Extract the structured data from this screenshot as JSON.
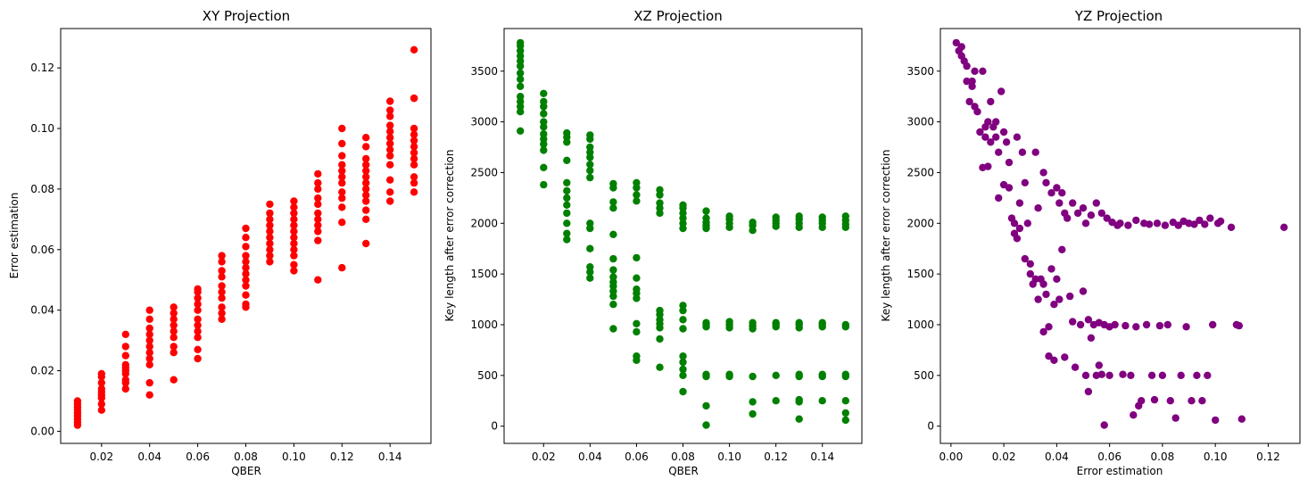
{
  "chart_data": [
    {
      "type": "scatter",
      "title": "XY Projection",
      "xlabel": "QBER",
      "ylabel": "Error estimation",
      "xlim": [
        0.003,
        0.157
      ],
      "ylim": [
        -0.004,
        0.133
      ],
      "xticks": [
        0.02,
        0.04,
        0.06,
        0.08,
        0.1,
        0.12,
        0.14
      ],
      "xtick_labels": [
        "0.02",
        "0.04",
        "0.06",
        "0.08",
        "0.10",
        "0.12",
        "0.14"
      ],
      "yticks": [
        0.0,
        0.02,
        0.04,
        0.06,
        0.08,
        0.1,
        0.12
      ],
      "ytick_labels": [
        "0.00",
        "0.02",
        "0.04",
        "0.06",
        "0.08",
        "0.10",
        "0.12"
      ],
      "grid": false,
      "color": "#ff0000",
      "series": [
        {
          "x": 0.01,
          "y": [
            0.002,
            0.003,
            0.004,
            0.005,
            0.006,
            0.007,
            0.008,
            0.009,
            0.01
          ]
        },
        {
          "x": 0.02,
          "y": [
            0.007,
            0.009,
            0.011,
            0.012,
            0.013,
            0.014,
            0.016,
            0.018,
            0.019
          ]
        },
        {
          "x": 0.03,
          "y": [
            0.014,
            0.016,
            0.017,
            0.019,
            0.02,
            0.021,
            0.022,
            0.025,
            0.028,
            0.032
          ]
        },
        {
          "x": 0.04,
          "y": [
            0.012,
            0.016,
            0.022,
            0.024,
            0.026,
            0.028,
            0.03,
            0.032,
            0.034,
            0.037,
            0.04
          ]
        },
        {
          "x": 0.05,
          "y": [
            0.017,
            0.026,
            0.028,
            0.031,
            0.033,
            0.035,
            0.037,
            0.039,
            0.041
          ]
        },
        {
          "x": 0.06,
          "y": [
            0.024,
            0.027,
            0.031,
            0.033,
            0.035,
            0.037,
            0.04,
            0.042,
            0.044,
            0.046,
            0.047
          ]
        },
        {
          "x": 0.07,
          "y": [
            0.037,
            0.039,
            0.041,
            0.044,
            0.046,
            0.048,
            0.051,
            0.053,
            0.056,
            0.058
          ]
        },
        {
          "x": 0.08,
          "y": [
            0.041,
            0.042,
            0.045,
            0.048,
            0.05,
            0.052,
            0.054,
            0.056,
            0.058,
            0.061,
            0.064,
            0.067
          ]
        },
        {
          "x": 0.09,
          "y": [
            0.056,
            0.058,
            0.06,
            0.062,
            0.064,
            0.066,
            0.068,
            0.07,
            0.072,
            0.075
          ]
        },
        {
          "x": 0.1,
          "y": [
            0.053,
            0.055,
            0.058,
            0.06,
            0.062,
            0.064,
            0.066,
            0.068,
            0.07,
            0.072,
            0.074,
            0.076
          ]
        },
        {
          "x": 0.11,
          "y": [
            0.05,
            0.063,
            0.066,
            0.068,
            0.07,
            0.072,
            0.075,
            0.077,
            0.08,
            0.082,
            0.085
          ]
        },
        {
          "x": 0.12,
          "y": [
            0.054,
            0.069,
            0.074,
            0.077,
            0.079,
            0.082,
            0.084,
            0.086,
            0.088,
            0.091,
            0.095,
            0.1
          ]
        },
        {
          "x": 0.13,
          "y": [
            0.062,
            0.07,
            0.073,
            0.076,
            0.078,
            0.08,
            0.082,
            0.084,
            0.086,
            0.088,
            0.09,
            0.094,
            0.097
          ]
        },
        {
          "x": 0.14,
          "y": [
            0.076,
            0.079,
            0.083,
            0.088,
            0.091,
            0.093,
            0.095,
            0.097,
            0.099,
            0.101,
            0.104,
            0.106,
            0.109
          ]
        },
        {
          "x": 0.15,
          "y": [
            0.079,
            0.082,
            0.084,
            0.088,
            0.09,
            0.092,
            0.094,
            0.096,
            0.098,
            0.1,
            0.11,
            0.11,
            0.126
          ]
        }
      ]
    },
    {
      "type": "scatter",
      "title": "XZ Projection",
      "xlabel": "QBER",
      "ylabel": "Key length after error correction",
      "xlim": [
        0.003,
        0.157
      ],
      "ylim": [
        -170,
        3920
      ],
      "xticks": [
        0.02,
        0.04,
        0.06,
        0.08,
        0.1,
        0.12,
        0.14
      ],
      "xtick_labels": [
        "0.02",
        "0.04",
        "0.06",
        "0.08",
        "0.10",
        "0.12",
        "0.14"
      ],
      "yticks": [
        0,
        500,
        1000,
        1500,
        2000,
        2500,
        3000,
        3500
      ],
      "ytick_labels": [
        "0",
        "500",
        "1000",
        "1500",
        "2000",
        "2500",
        "3000",
        "3500"
      ],
      "grid": false,
      "color": "#008000",
      "series": [
        {
          "x": 0.01,
          "y": [
            2910,
            3100,
            3150,
            3200,
            3250,
            3350,
            3420,
            3480,
            3550,
            3600,
            3650,
            3700,
            3750,
            3780
          ]
        },
        {
          "x": 0.02,
          "y": [
            2380,
            2550,
            2720,
            2780,
            2830,
            2880,
            2950,
            3000,
            3080,
            3150,
            3200,
            3280
          ]
        },
        {
          "x": 0.03,
          "y": [
            1840,
            1900,
            2000,
            2100,
            2180,
            2250,
            2320,
            2400,
            2620,
            2800,
            2850,
            2890
          ]
        },
        {
          "x": 0.04,
          "y": [
            1460,
            1520,
            1570,
            1750,
            1950,
            2000,
            2450,
            2520,
            2580,
            2650,
            2700,
            2750,
            2830,
            2870
          ]
        },
        {
          "x": 0.05,
          "y": [
            960,
            1200,
            1280,
            1330,
            1380,
            1420,
            1470,
            1540,
            1650,
            1890,
            2150,
            2210,
            2350,
            2390
          ]
        },
        {
          "x": 0.06,
          "y": [
            650,
            690,
            930,
            1010,
            1260,
            1310,
            1350,
            1460,
            1660,
            2220,
            2280,
            2350,
            2400
          ]
        },
        {
          "x": 0.07,
          "y": [
            580,
            860,
            970,
            1010,
            1050,
            1100,
            1140,
            2100,
            2150,
            2200,
            2280,
            2330
          ]
        },
        {
          "x": 0.08,
          "y": [
            340,
            500,
            560,
            630,
            690,
            960,
            1050,
            1140,
            1190,
            1950,
            2000,
            2050,
            2100,
            2150,
            2180
          ]
        },
        {
          "x": 0.09,
          "y": [
            10,
            200,
            490,
            510,
            980,
            1000,
            1020,
            1950,
            1980,
            2010,
            2050,
            2120
          ]
        },
        {
          "x": 0.1,
          "y": [
            490,
            510,
            970,
            1000,
            1030,
            1960,
            2000,
            2040,
            2070
          ]
        },
        {
          "x": 0.11,
          "y": [
            120,
            240,
            490,
            960,
            990,
            1020,
            1930,
            1980,
            2010
          ]
        },
        {
          "x": 0.12,
          "y": [
            250,
            500,
            980,
            1000,
            1020,
            1970,
            2000,
            2030,
            2060
          ]
        },
        {
          "x": 0.13,
          "y": [
            70,
            240,
            260,
            490,
            510,
            970,
            1000,
            1020,
            1960,
            2000,
            2040,
            2070
          ]
        },
        {
          "x": 0.14,
          "y": [
            250,
            490,
            510,
            980,
            1000,
            1020,
            1960,
            2000,
            2030,
            2060
          ]
        },
        {
          "x": 0.15,
          "y": [
            60,
            130,
            250,
            490,
            510,
            980,
            1000,
            1960,
            1990,
            2030,
            2070
          ]
        }
      ]
    },
    {
      "type": "scatter",
      "title": "YZ Projection",
      "xlabel": "Error estimation",
      "ylabel": "Key length after error correction",
      "xlim": [
        -0.004,
        0.132
      ],
      "ylim": [
        -170,
        3920
      ],
      "xticks": [
        0.0,
        0.02,
        0.04,
        0.06,
        0.08,
        0.1,
        0.12
      ],
      "xtick_labels": [
        "0.00",
        "0.02",
        "0.04",
        "0.06",
        "0.08",
        "0.10",
        "0.12"
      ],
      "yticks": [
        0,
        500,
        1000,
        1500,
        2000,
        2500,
        3000,
        3500
      ],
      "ytick_labels": [
        "0",
        "500",
        "1000",
        "1500",
        "2000",
        "2500",
        "3000",
        "3500"
      ],
      "grid": false,
      "color": "#800080",
      "points": [
        [
          0.002,
          3780
        ],
        [
          0.003,
          3700
        ],
        [
          0.004,
          3650
        ],
        [
          0.004,
          3740
        ],
        [
          0.005,
          3600
        ],
        [
          0.006,
          3550
        ],
        [
          0.006,
          3400
        ],
        [
          0.007,
          3200
        ],
        [
          0.008,
          3400
        ],
        [
          0.008,
          3350
        ],
        [
          0.009,
          3150
        ],
        [
          0.009,
          3500
        ],
        [
          0.01,
          3100
        ],
        [
          0.011,
          2900
        ],
        [
          0.012,
          3500
        ],
        [
          0.012,
          2550
        ],
        [
          0.013,
          2950
        ],
        [
          0.013,
          2850
        ],
        [
          0.014,
          3000
        ],
        [
          0.014,
          2560
        ],
        [
          0.015,
          3200
        ],
        [
          0.015,
          2800
        ],
        [
          0.016,
          2950
        ],
        [
          0.017,
          2850
        ],
        [
          0.017,
          3000
        ],
        [
          0.018,
          2700
        ],
        [
          0.018,
          2250
        ],
        [
          0.019,
          3300
        ],
        [
          0.02,
          2900
        ],
        [
          0.02,
          2380
        ],
        [
          0.021,
          2800
        ],
        [
          0.022,
          2600
        ],
        [
          0.022,
          2350
        ],
        [
          0.023,
          2050
        ],
        [
          0.024,
          1900
        ],
        [
          0.024,
          2000
        ],
        [
          0.025,
          2850
        ],
        [
          0.025,
          1850
        ],
        [
          0.026,
          1950
        ],
        [
          0.026,
          2200
        ],
        [
          0.027,
          2700
        ],
        [
          0.028,
          1650
        ],
        [
          0.028,
          2400
        ],
        [
          0.029,
          2000
        ],
        [
          0.03,
          1500
        ],
        [
          0.03,
          1600
        ],
        [
          0.031,
          1400
        ],
        [
          0.032,
          2700
        ],
        [
          0.032,
          1450
        ],
        [
          0.033,
          2150
        ],
        [
          0.033,
          1250
        ],
        [
          0.034,
          1450
        ],
        [
          0.035,
          2500
        ],
        [
          0.035,
          1400
        ],
        [
          0.035,
          930
        ],
        [
          0.036,
          2400
        ],
        [
          0.036,
          1300
        ],
        [
          0.037,
          980
        ],
        [
          0.037,
          690
        ],
        [
          0.038,
          1550
        ],
        [
          0.038,
          2300
        ],
        [
          0.039,
          1200
        ],
        [
          0.039,
          650
        ],
        [
          0.04,
          2350
        ],
        [
          0.04,
          1450
        ],
        [
          0.041,
          2200
        ],
        [
          0.041,
          1250
        ],
        [
          0.042,
          2300
        ],
        [
          0.042,
          1740
        ],
        [
          0.043,
          2100
        ],
        [
          0.043,
          680
        ],
        [
          0.044,
          2050
        ],
        [
          0.045,
          1280
        ],
        [
          0.046,
          2200
        ],
        [
          0.046,
          1030
        ],
        [
          0.047,
          580
        ],
        [
          0.048,
          2100
        ],
        [
          0.049,
          1000
        ],
        [
          0.05,
          1330
        ],
        [
          0.05,
          2150
        ],
        [
          0.051,
          2000
        ],
        [
          0.051,
          500
        ],
        [
          0.052,
          340
        ],
        [
          0.052,
          1050
        ],
        [
          0.053,
          870
        ],
        [
          0.053,
          2080
        ],
        [
          0.054,
          1000
        ],
        [
          0.055,
          500
        ],
        [
          0.055,
          2200
        ],
        [
          0.056,
          600
        ],
        [
          0.056,
          1020
        ],
        [
          0.057,
          2100
        ],
        [
          0.057,
          510
        ],
        [
          0.058,
          10
        ],
        [
          0.058,
          1000
        ],
        [
          0.059,
          2050
        ],
        [
          0.06,
          980
        ],
        [
          0.06,
          500
        ],
        [
          0.061,
          2010
        ],
        [
          0.062,
          1000
        ],
        [
          0.063,
          1980
        ],
        [
          0.064,
          2000
        ],
        [
          0.065,
          510
        ],
        [
          0.066,
          990
        ],
        [
          0.067,
          1980
        ],
        [
          0.068,
          500
        ],
        [
          0.069,
          110
        ],
        [
          0.07,
          2030
        ],
        [
          0.07,
          980
        ],
        [
          0.071,
          200
        ],
        [
          0.072,
          250
        ],
        [
          0.073,
          2000
        ],
        [
          0.074,
          1000
        ],
        [
          0.075,
          1990
        ],
        [
          0.076,
          500
        ],
        [
          0.077,
          260
        ],
        [
          0.078,
          2000
        ],
        [
          0.079,
          990
        ],
        [
          0.08,
          500
        ],
        [
          0.081,
          1980
        ],
        [
          0.082,
          1000
        ],
        [
          0.083,
          250
        ],
        [
          0.084,
          2010
        ],
        [
          0.085,
          80
        ],
        [
          0.086,
          1980
        ],
        [
          0.087,
          500
        ],
        [
          0.088,
          2020
        ],
        [
          0.089,
          980
        ],
        [
          0.09,
          2000
        ],
        [
          0.091,
          250
        ],
        [
          0.092,
          1990
        ],
        [
          0.093,
          500
        ],
        [
          0.094,
          2030
        ],
        [
          0.095,
          250
        ],
        [
          0.096,
          1990
        ],
        [
          0.097,
          500
        ],
        [
          0.098,
          2050
        ],
        [
          0.099,
          1000
        ],
        [
          0.1,
          60
        ],
        [
          0.101,
          2000
        ],
        [
          0.102,
          2020
        ],
        [
          0.106,
          1960
        ],
        [
          0.108,
          1000
        ],
        [
          0.109,
          990
        ],
        [
          0.11,
          70
        ],
        [
          0.126,
          1960
        ]
      ]
    }
  ]
}
